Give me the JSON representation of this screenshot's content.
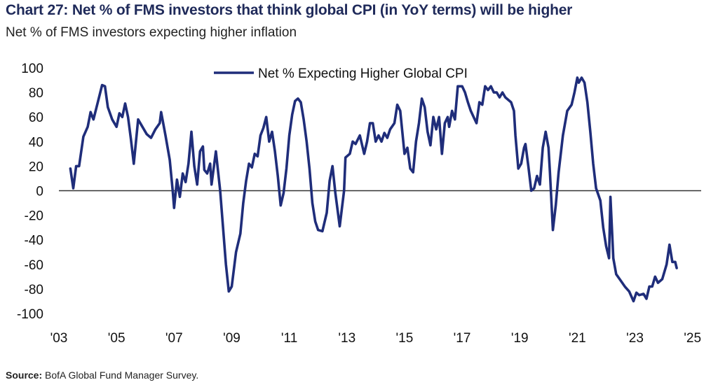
{
  "title": "Chart 27: Net % of FMS investors that think global CPI (in YoY terms) will be higher",
  "subtitle": "Net % of FMS investors expecting higher inflation",
  "source_label": "Source:",
  "source_text": " BofA Global Fund Manager Survey.",
  "colors": {
    "line": "#1f2d7a",
    "zero_line": "#333333",
    "text": "#111111"
  },
  "chart_data": {
    "type": "line",
    "title": "Chart 27: Net % of FMS investors that think global CPI (in YoY terms) will be higher",
    "subtitle": "Net % of FMS investors expecting higher inflation",
    "xlabel": "",
    "ylabel": "",
    "xlim": [
      2003,
      2025.3
    ],
    "ylim": [
      -100,
      100
    ],
    "grid": false,
    "legend": "top-center",
    "x_ticks": [
      2003,
      2005,
      2007,
      2009,
      2011,
      2013,
      2015,
      2017,
      2019,
      2021,
      2023,
      2025
    ],
    "x_tick_labels": [
      "'03",
      "'05",
      "'07",
      "'09",
      "'11",
      "'13",
      "'15",
      "'17",
      "'19",
      "'21",
      "'23",
      "'25"
    ],
    "y_ticks": [
      100,
      80,
      60,
      40,
      20,
      0,
      -20,
      -40,
      -60,
      -80,
      -100
    ],
    "y_tick_labels": [
      "100",
      "80",
      "60",
      "40",
      "20",
      "0",
      "-20",
      "-40",
      "-60",
      "-80",
      "-100"
    ],
    "series": [
      {
        "name": "Net % Expecting Higher Global CPI",
        "points": [
          [
            2003.4,
            18
          ],
          [
            2003.5,
            2
          ],
          [
            2003.6,
            20
          ],
          [
            2003.7,
            20
          ],
          [
            2003.85,
            44
          ],
          [
            2004.0,
            52
          ],
          [
            2004.1,
            64
          ],
          [
            2004.2,
            58
          ],
          [
            2004.35,
            72
          ],
          [
            2004.5,
            86
          ],
          [
            2004.6,
            85
          ],
          [
            2004.7,
            68
          ],
          [
            2004.85,
            58
          ],
          [
            2005.0,
            52
          ],
          [
            2005.1,
            63
          ],
          [
            2005.2,
            60
          ],
          [
            2005.3,
            71
          ],
          [
            2005.4,
            60
          ],
          [
            2005.5,
            42
          ],
          [
            2005.6,
            22
          ],
          [
            2005.75,
            58
          ],
          [
            2005.9,
            52
          ],
          [
            2006.05,
            46
          ],
          [
            2006.2,
            43
          ],
          [
            2006.35,
            50
          ],
          [
            2006.5,
            55
          ],
          [
            2006.55,
            64
          ],
          [
            2006.7,
            45
          ],
          [
            2006.85,
            25
          ],
          [
            2006.95,
            0
          ],
          [
            2007.0,
            -14
          ],
          [
            2007.1,
            9
          ],
          [
            2007.2,
            -5
          ],
          [
            2007.3,
            14
          ],
          [
            2007.4,
            7
          ],
          [
            2007.5,
            22
          ],
          [
            2007.6,
            48
          ],
          [
            2007.7,
            20
          ],
          [
            2007.8,
            5
          ],
          [
            2007.9,
            32
          ],
          [
            2008.0,
            36
          ],
          [
            2008.05,
            17
          ],
          [
            2008.15,
            14
          ],
          [
            2008.25,
            22
          ],
          [
            2008.3,
            5
          ],
          [
            2008.45,
            32
          ],
          [
            2008.6,
            0
          ],
          [
            2008.7,
            -30
          ],
          [
            2008.8,
            -60
          ],
          [
            2008.9,
            -82
          ],
          [
            2009.0,
            -78
          ],
          [
            2009.15,
            -50
          ],
          [
            2009.3,
            -35
          ],
          [
            2009.4,
            -10
          ],
          [
            2009.5,
            8
          ],
          [
            2009.6,
            22
          ],
          [
            2009.7,
            19
          ],
          [
            2009.8,
            30
          ],
          [
            2009.9,
            28
          ],
          [
            2010.0,
            45
          ],
          [
            2010.1,
            51
          ],
          [
            2010.2,
            60
          ],
          [
            2010.3,
            40
          ],
          [
            2010.4,
            48
          ],
          [
            2010.5,
            32
          ],
          [
            2010.6,
            12
          ],
          [
            2010.7,
            -12
          ],
          [
            2010.8,
            -2
          ],
          [
            2010.9,
            18
          ],
          [
            2011.0,
            45
          ],
          [
            2011.1,
            62
          ],
          [
            2011.2,
            73
          ],
          [
            2011.3,
            75
          ],
          [
            2011.4,
            72
          ],
          [
            2011.5,
            58
          ],
          [
            2011.6,
            40
          ],
          [
            2011.7,
            18
          ],
          [
            2011.8,
            -10
          ],
          [
            2011.9,
            -25
          ],
          [
            2012.0,
            -32
          ],
          [
            2012.15,
            -33
          ],
          [
            2012.3,
            -18
          ],
          [
            2012.4,
            8
          ],
          [
            2012.5,
            20
          ],
          [
            2012.6,
            -2
          ],
          [
            2012.75,
            -29
          ],
          [
            2012.9,
            0
          ],
          [
            2012.95,
            27
          ],
          [
            2013.1,
            30
          ],
          [
            2013.2,
            40
          ],
          [
            2013.3,
            38
          ],
          [
            2013.45,
            45
          ],
          [
            2013.6,
            30
          ],
          [
            2013.7,
            40
          ],
          [
            2013.8,
            55
          ],
          [
            2013.9,
            55
          ],
          [
            2014.0,
            40
          ],
          [
            2014.1,
            45
          ],
          [
            2014.2,
            40
          ],
          [
            2014.3,
            47
          ],
          [
            2014.4,
            43
          ],
          [
            2014.5,
            50
          ],
          [
            2014.65,
            55
          ],
          [
            2014.75,
            70
          ],
          [
            2014.85,
            65
          ],
          [
            2015.0,
            30
          ],
          [
            2015.1,
            35
          ],
          [
            2015.2,
            18
          ],
          [
            2015.3,
            15
          ],
          [
            2015.4,
            40
          ],
          [
            2015.5,
            55
          ],
          [
            2015.6,
            75
          ],
          [
            2015.7,
            68
          ],
          [
            2015.8,
            48
          ],
          [
            2015.9,
            37
          ],
          [
            2016.0,
            60
          ],
          [
            2016.1,
            50
          ],
          [
            2016.2,
            60
          ],
          [
            2016.3,
            30
          ],
          [
            2016.4,
            55
          ],
          [
            2016.5,
            60
          ],
          [
            2016.55,
            52
          ],
          [
            2016.65,
            65
          ],
          [
            2016.75,
            58
          ],
          [
            2016.85,
            85
          ],
          [
            2017.0,
            85
          ],
          [
            2017.1,
            80
          ],
          [
            2017.2,
            72
          ],
          [
            2017.3,
            65
          ],
          [
            2017.4,
            60
          ],
          [
            2017.5,
            55
          ],
          [
            2017.6,
            72
          ],
          [
            2017.7,
            70
          ],
          [
            2017.8,
            85
          ],
          [
            2017.9,
            82
          ],
          [
            2018.0,
            85
          ],
          [
            2018.1,
            80
          ],
          [
            2018.2,
            80
          ],
          [
            2018.3,
            76
          ],
          [
            2018.4,
            80
          ],
          [
            2018.5,
            76
          ],
          [
            2018.7,
            72
          ],
          [
            2018.8,
            65
          ],
          [
            2018.85,
            45
          ],
          [
            2018.95,
            18
          ],
          [
            2019.05,
            22
          ],
          [
            2019.15,
            35
          ],
          [
            2019.2,
            38
          ],
          [
            2019.3,
            20
          ],
          [
            2019.4,
            0
          ],
          [
            2019.5,
            2
          ],
          [
            2019.6,
            12
          ],
          [
            2019.7,
            5
          ],
          [
            2019.8,
            35
          ],
          [
            2019.9,
            48
          ],
          [
            2020.0,
            35
          ],
          [
            2020.05,
            15
          ],
          [
            2020.15,
            -32
          ],
          [
            2020.25,
            -12
          ],
          [
            2020.35,
            15
          ],
          [
            2020.5,
            45
          ],
          [
            2020.65,
            65
          ],
          [
            2020.8,
            70
          ],
          [
            2020.9,
            80
          ],
          [
            2021.0,
            92
          ],
          [
            2021.05,
            88
          ],
          [
            2021.15,
            92
          ],
          [
            2021.25,
            88
          ],
          [
            2021.35,
            72
          ],
          [
            2021.45,
            48
          ],
          [
            2021.55,
            22
          ],
          [
            2021.65,
            2
          ],
          [
            2021.8,
            -8
          ],
          [
            2021.9,
            -30
          ],
          [
            2022.0,
            -45
          ],
          [
            2022.1,
            -55
          ],
          [
            2022.15,
            -5
          ],
          [
            2022.25,
            -55
          ],
          [
            2022.35,
            -68
          ],
          [
            2022.5,
            -73
          ],
          [
            2022.65,
            -78
          ],
          [
            2022.8,
            -82
          ],
          [
            2022.95,
            -90
          ],
          [
            2023.05,
            -83
          ],
          [
            2023.15,
            -85
          ],
          [
            2023.3,
            -84
          ],
          [
            2023.4,
            -88
          ],
          [
            2023.5,
            -78
          ],
          [
            2023.6,
            -78
          ],
          [
            2023.7,
            -70
          ],
          [
            2023.8,
            -75
          ],
          [
            2023.95,
            -72
          ],
          [
            2024.1,
            -60
          ],
          [
            2024.2,
            -44
          ],
          [
            2024.3,
            -58
          ],
          [
            2024.4,
            -58
          ],
          [
            2024.45,
            -63
          ]
        ]
      }
    ]
  }
}
